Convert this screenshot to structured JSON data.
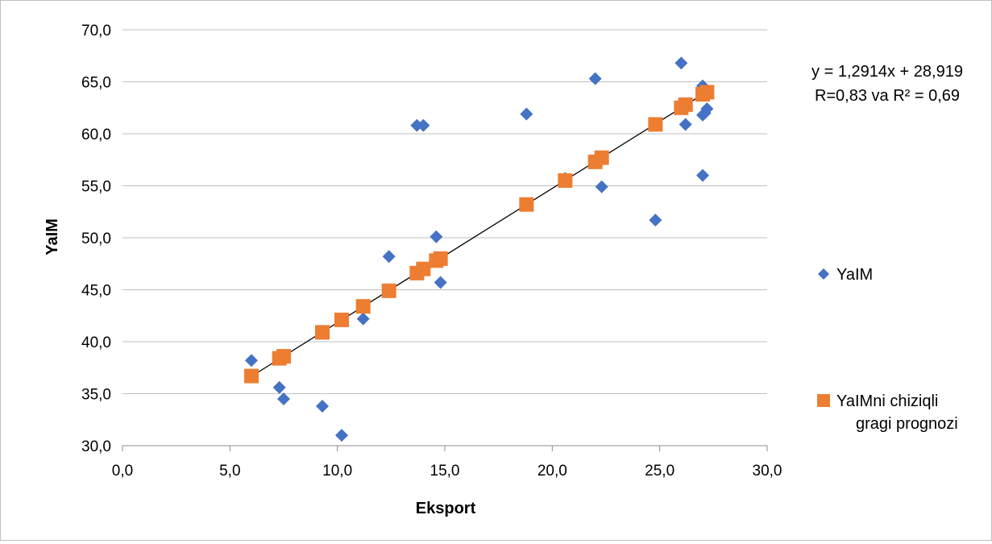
{
  "chart_data": {
    "type": "scatter",
    "xlabel": "Eksport",
    "ylabel": "YaIM",
    "xlim": [
      0,
      30
    ],
    "ylim": [
      30,
      70
    ],
    "x_ticks": [
      "0,0",
      "5,0",
      "10,0",
      "15,0",
      "20,0",
      "25,0",
      "30,0"
    ],
    "y_ticks": [
      "30,0",
      "35,0",
      "40,0",
      "45,0",
      "50,0",
      "55,0",
      "60,0",
      "65,0",
      "70,0"
    ],
    "grid": "horizontal",
    "legend_position": "right",
    "series": [
      {
        "name": "YaIM",
        "marker": "diamond",
        "color": "#4472C4",
        "points": [
          [
            6.0,
            38.2
          ],
          [
            7.3,
            35.6
          ],
          [
            7.5,
            34.5
          ],
          [
            9.3,
            33.8
          ],
          [
            10.2,
            31.0
          ],
          [
            11.2,
            42.2
          ],
          [
            12.4,
            48.2
          ],
          [
            13.7,
            60.8
          ],
          [
            14.0,
            60.8
          ],
          [
            14.6,
            50.1
          ],
          [
            14.8,
            45.7
          ],
          [
            18.8,
            61.9
          ],
          [
            20.6,
            55.7
          ],
          [
            22.0,
            65.3
          ],
          [
            22.3,
            54.9
          ],
          [
            24.8,
            51.7
          ],
          [
            26.0,
            66.8
          ],
          [
            26.2,
            60.9
          ],
          [
            27.0,
            64.6
          ],
          [
            27.0,
            61.8
          ],
          [
            27.1,
            62.0
          ],
          [
            27.2,
            62.4
          ],
          [
            27.0,
            56.0
          ]
        ]
      },
      {
        "name": "YaIMni chiziqli\ngragi prognozi",
        "marker": "square",
        "color": "#ED7D31",
        "points": [
          [
            6.0,
            36.7
          ],
          [
            7.3,
            38.4
          ],
          [
            7.5,
            38.6
          ],
          [
            9.3,
            40.9
          ],
          [
            10.2,
            42.1
          ],
          [
            11.2,
            43.4
          ],
          [
            12.4,
            44.9
          ],
          [
            13.7,
            46.6
          ],
          [
            14.0,
            47.0
          ],
          [
            14.6,
            47.8
          ],
          [
            14.8,
            48.0
          ],
          [
            18.8,
            53.2
          ],
          [
            20.6,
            55.5
          ],
          [
            22.0,
            57.3
          ],
          [
            22.3,
            57.7
          ],
          [
            24.8,
            60.9
          ],
          [
            26.0,
            62.5
          ],
          [
            26.2,
            62.8
          ],
          [
            27.0,
            63.8
          ],
          [
            27.2,
            64.0
          ]
        ]
      }
    ],
    "trendline": {
      "slope": 1.2914,
      "intercept": 28.919,
      "x_range": [
        6.0,
        27.2
      ],
      "color": "#000000",
      "equation_label": "y = 1,2914x + 28,919",
      "r_label": "R=0,83 va R² = 0,69"
    }
  }
}
